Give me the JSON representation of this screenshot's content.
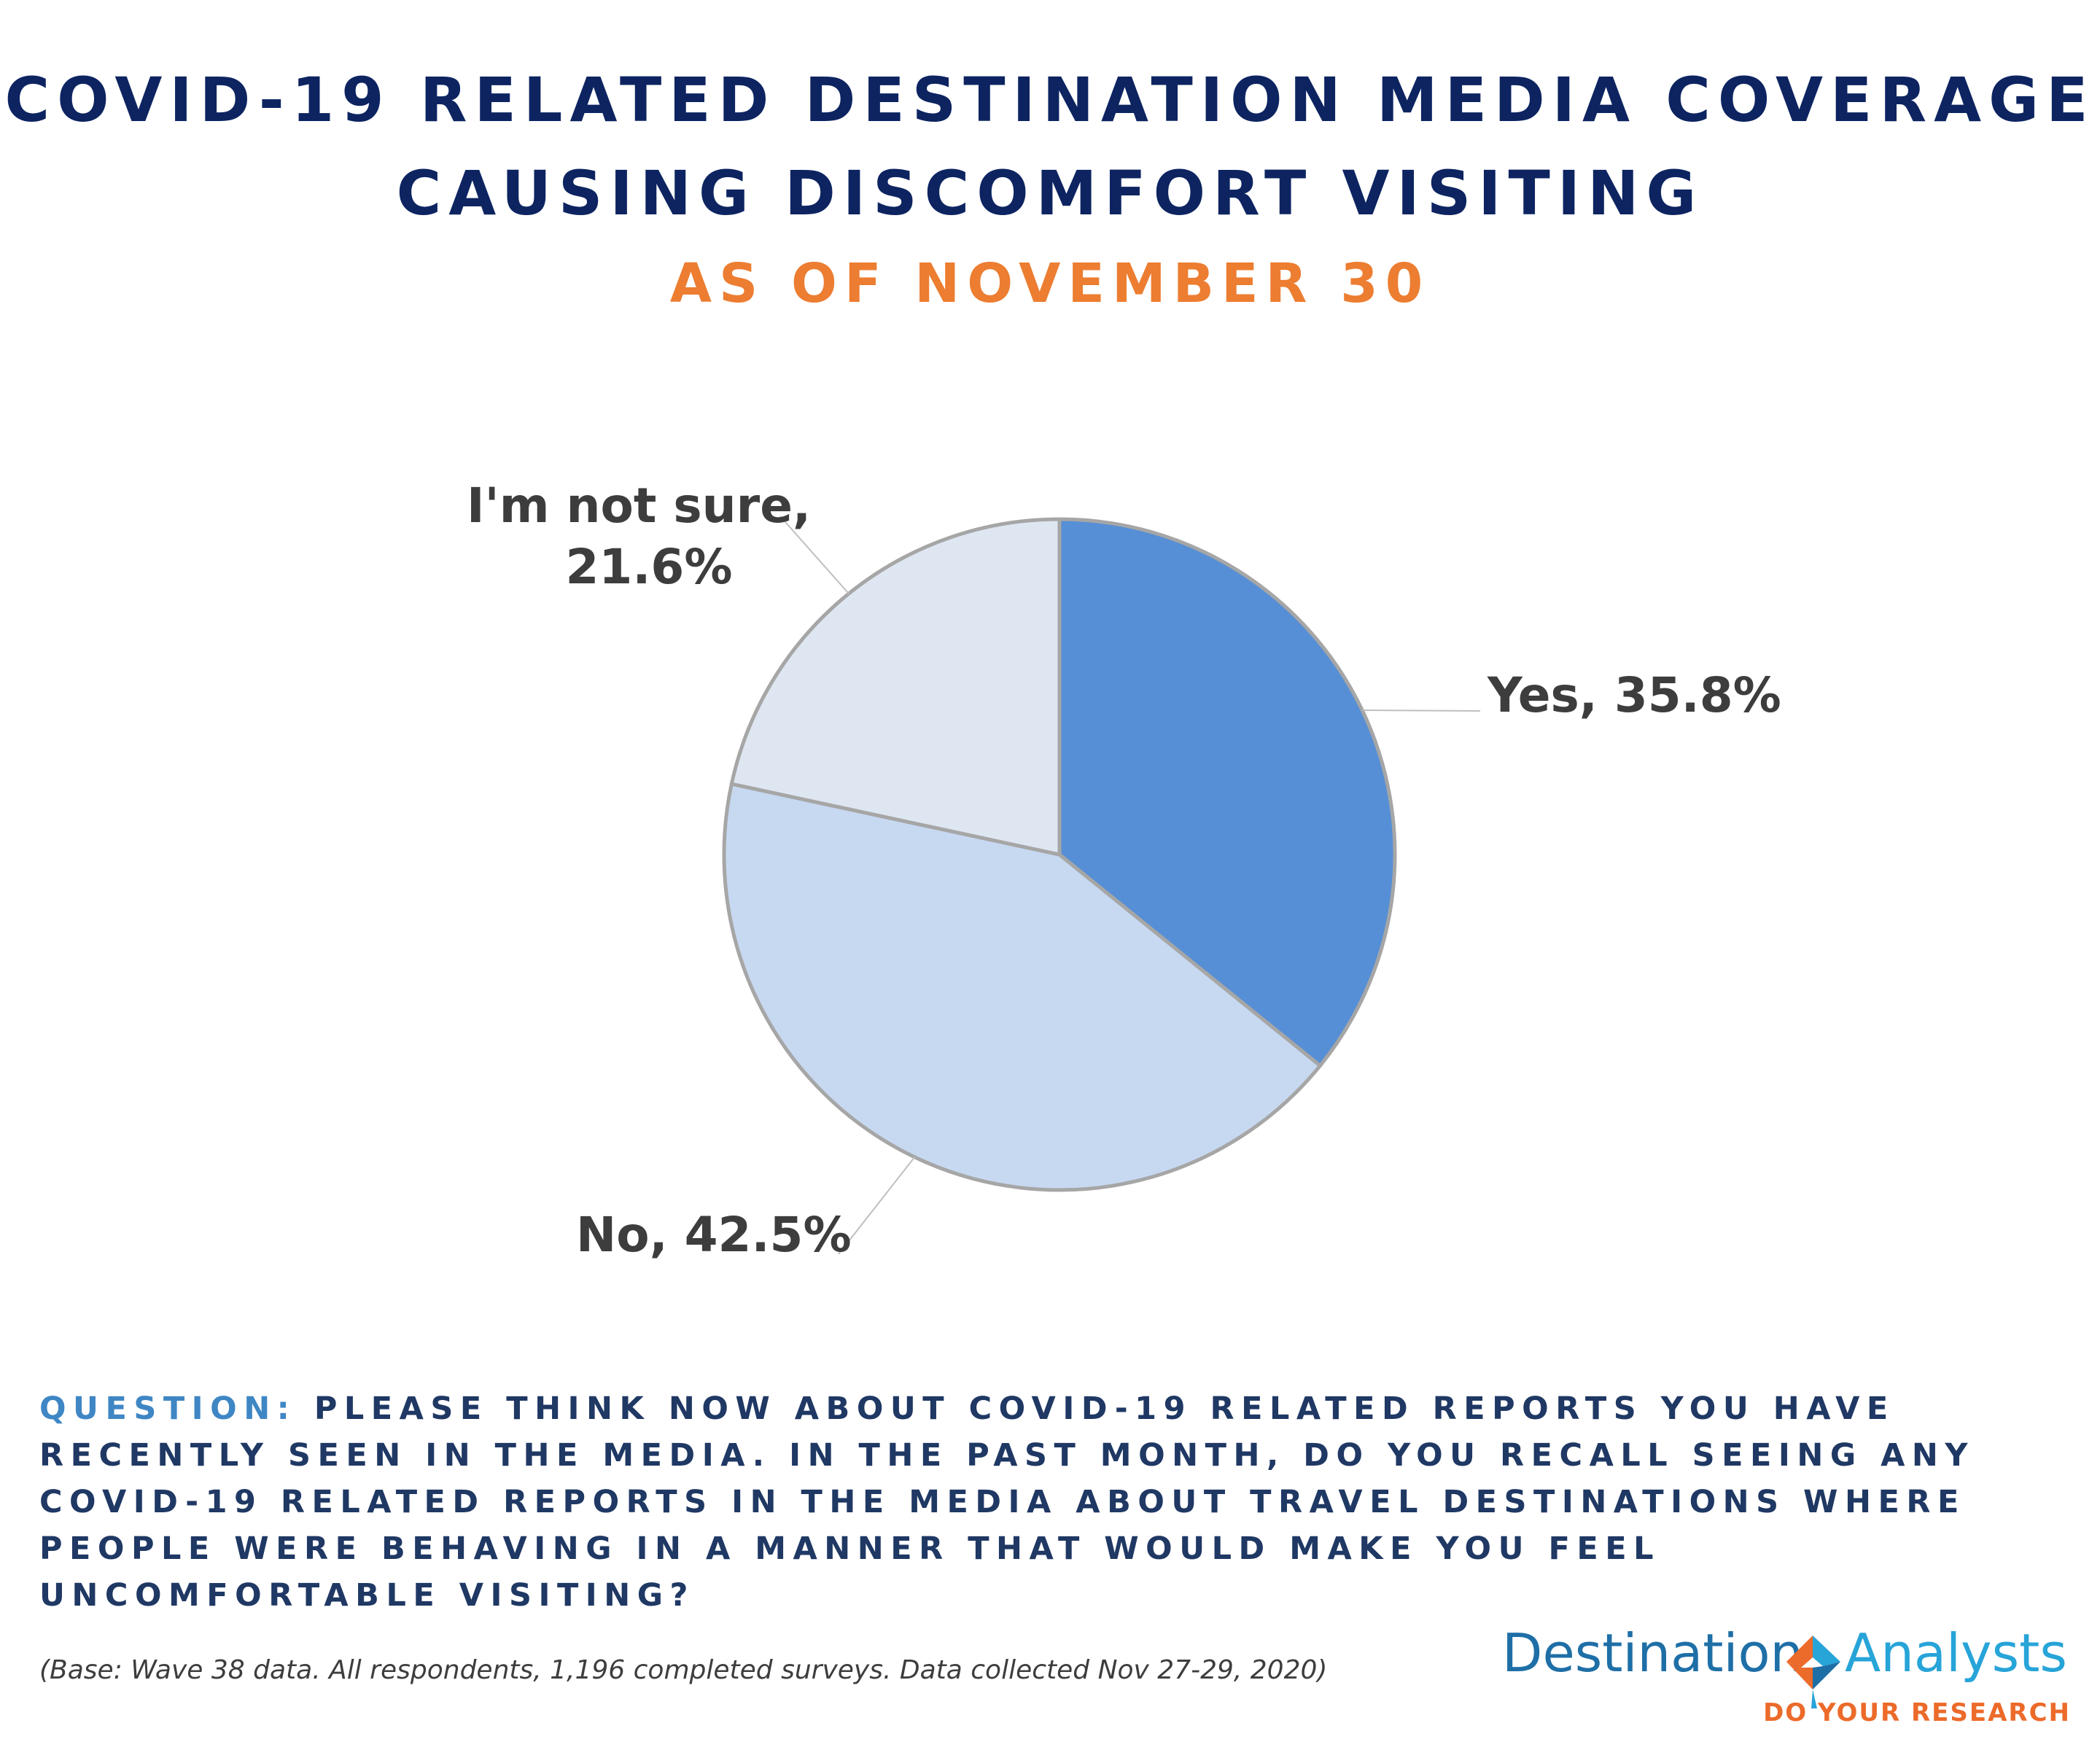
{
  "title_line1": "COVID-19 RELATED DESTINATION MEDIA COVERAGE",
  "title_line2": "CAUSING DISCOMFORT VISITING",
  "subtitle": "AS OF NOVEMBER 30",
  "chart_data": {
    "type": "pie",
    "categories": [
      "Yes",
      "No",
      "I'm not sure"
    ],
    "values": [
      35.8,
      42.5,
      21.6
    ],
    "labels": [
      "Yes, 35.8%",
      "No, 42.5%",
      "I'm not sure, 21.6%"
    ],
    "label_lines": [
      [
        "Yes, 35.8%"
      ],
      [
        "No, 42.5%"
      ],
      [
        "I'm not sure,",
        "21.6%"
      ]
    ],
    "colors": [
      "#568fd6",
      "#c7d9f1",
      "#dee6f1"
    ],
    "start_angle": "12 o'clock",
    "direction": "clockwise"
  },
  "question_label": "QUESTION:",
  "question_text": " PLEASE THINK NOW ABOUT COVID-19 RELATED REPORTS YOU HAVE RECENTLY SEEN IN THE MEDIA. IN THE PAST MONTH, DO YOU RECALL SEEING ANY COVID-19 RELATED REPORTS IN THE MEDIA ABOUT TRAVEL DESTINATIONS WHERE PEOPLE WERE BEHAVING IN A MANNER THAT WOULD MAKE YOU FEEL UNCOMFORTABLE VISITING?",
  "base_note": "(Base: Wave 38 data. All respondents, 1,196 completed surveys. Data collected Nov 27-29, 2020)",
  "logo": {
    "word1": "Destination",
    "word2": "Analysts",
    "tagline": "DO YOUR RESEARCH",
    "colors": {
      "blue": "#1f6fa7",
      "light_blue": "#27a4d8",
      "orange": "#ec6a2a"
    }
  }
}
